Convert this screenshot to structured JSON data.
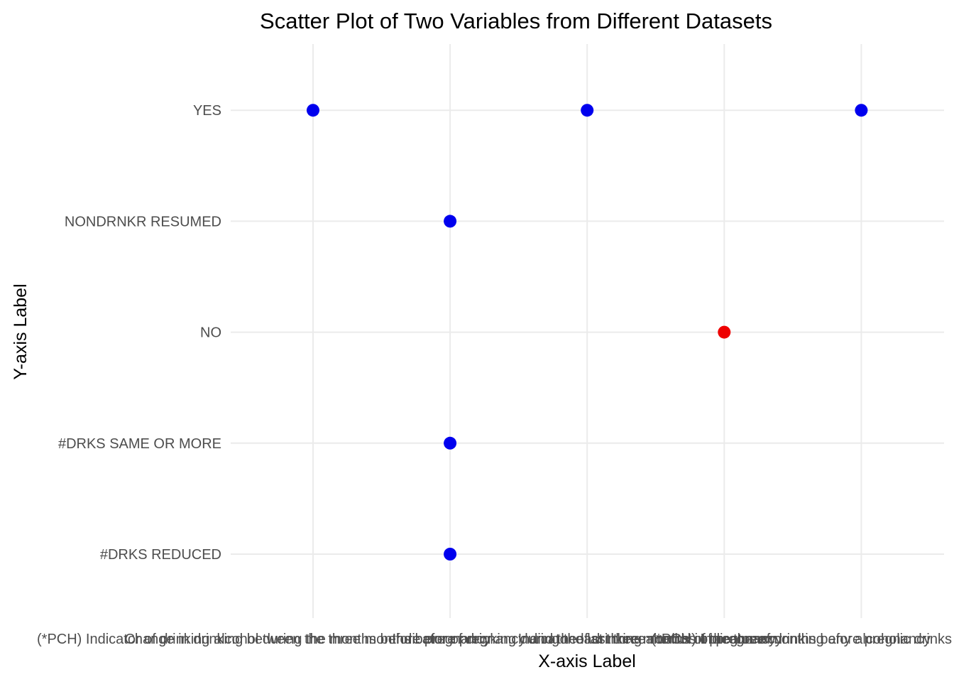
{
  "chart_data": {
    "type": "scatter",
    "title": "Scatter Plot of Two Variables from Different Datasets",
    "xlabel": "X-axis Label",
    "ylabel": "Y-axis Label",
    "x_categories": [
      "(*PCH) Indicator of drinking alcohol during the months before pregnancy",
      "Change in drinking between the three months before pregnancy and the last three months of pregnancy",
      "Indicator of drinking during the last three months of pregnancy",
      "Indicator of drinking alcohol in the three months before pregnancy",
      "(*PCH) Indicator of drinking any alcoholic drinks"
    ],
    "y_categories": [
      "#DRKS REDUCED",
      "#DRKS SAME OR MORE",
      "NO",
      "NONDRNKR RESUMED",
      "YES"
    ],
    "grid": true,
    "legend": "none",
    "points": [
      {
        "x": "(*PCH) Indicator of drinking alcohol during the months before pregnancy",
        "y": "YES",
        "color": "#0000ee"
      },
      {
        "x": "Change in drinking between the three months before pregnancy and the last three months of pregnancy",
        "y": "NONDRNKR RESUMED",
        "color": "#0000ee"
      },
      {
        "x": "Change in drinking between the three months before pregnancy and the last three months of pregnancy",
        "y": "#DRKS SAME OR MORE",
        "color": "#0000ee"
      },
      {
        "x": "Change in drinking between the three months before pregnancy and the last three months of pregnancy",
        "y": "#DRKS REDUCED",
        "color": "#0000ee"
      },
      {
        "x": "Indicator of drinking during the last three months of pregnancy",
        "y": "YES",
        "color": "#0000ee"
      },
      {
        "x": "Indicator of drinking alcohol in the three months before pregnancy",
        "y": "NO",
        "color": "#ee0000"
      },
      {
        "x": "(*PCH) Indicator of drinking any alcoholic drinks",
        "y": "YES",
        "color": "#0000ee"
      }
    ]
  }
}
